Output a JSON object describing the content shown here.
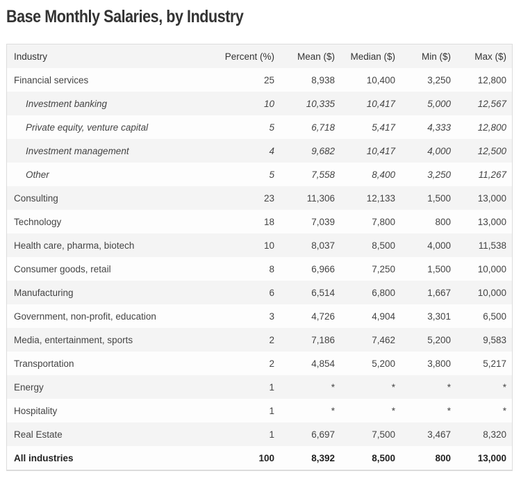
{
  "title": "Base Monthly Salaries, by Industry",
  "table": {
    "headers": [
      "Industry",
      "Percent (%)",
      "Mean ($)",
      "Median ($)",
      "Min ($)",
      "Max ($)"
    ],
    "rows": [
      {
        "industry": "Financial services",
        "sub": false,
        "percent": "25",
        "mean": "8,938",
        "median": "10,400",
        "min": "3,250",
        "max": "12,800"
      },
      {
        "industry": "Investment banking",
        "sub": true,
        "percent": "10",
        "mean": "10,335",
        "median": "10,417",
        "min": "5,000",
        "max": "12,567"
      },
      {
        "industry": "Private equity, venture capital",
        "sub": true,
        "percent": "5",
        "mean": "6,718",
        "median": "5,417",
        "min": "4,333",
        "max": "12,800"
      },
      {
        "industry": "Investment management",
        "sub": true,
        "percent": "4",
        "mean": "9,682",
        "median": "10,417",
        "min": "4,000",
        "max": "12,500"
      },
      {
        "industry": "Other",
        "sub": true,
        "percent": "5",
        "mean": "7,558",
        "median": "8,400",
        "min": "3,250",
        "max": "11,267"
      },
      {
        "industry": "Consulting",
        "sub": false,
        "percent": "23",
        "mean": "11,306",
        "median": "12,133",
        "min": "1,500",
        "max": "13,000"
      },
      {
        "industry": "Technology",
        "sub": false,
        "percent": "18",
        "mean": "7,039",
        "median": "7,800",
        "min": "800",
        "max": "13,000"
      },
      {
        "industry": "Health care, pharma, biotech",
        "sub": false,
        "percent": "10",
        "mean": "8,037",
        "median": "8,500",
        "min": "4,000",
        "max": "11,538"
      },
      {
        "industry": "Consumer goods, retail",
        "sub": false,
        "percent": "8",
        "mean": "6,966",
        "median": "7,250",
        "min": "1,500",
        "max": "10,000"
      },
      {
        "industry": "Manufacturing",
        "sub": false,
        "percent": "6",
        "mean": "6,514",
        "median": "6,800",
        "min": "1,667",
        "max": "10,000"
      },
      {
        "industry": "Government, non-profit, education",
        "sub": false,
        "percent": "3",
        "mean": "4,726",
        "median": "4,904",
        "min": "3,301",
        "max": "6,500"
      },
      {
        "industry": "Media, entertainment, sports",
        "sub": false,
        "percent": "2",
        "mean": "7,186",
        "median": "7,462",
        "min": "5,200",
        "max": "9,583"
      },
      {
        "industry": "Transportation",
        "sub": false,
        "percent": "2",
        "mean": "4,854",
        "median": "5,200",
        "min": "3,800",
        "max": "5,217"
      },
      {
        "industry": "Energy",
        "sub": false,
        "percent": "1",
        "mean": "*",
        "median": "*",
        "min": "*",
        "max": "*"
      },
      {
        "industry": "Hospitality",
        "sub": false,
        "percent": "1",
        "mean": "*",
        "median": "*",
        "min": "*",
        "max": "*"
      },
      {
        "industry": "Real Estate",
        "sub": false,
        "percent": "1",
        "mean": "6,697",
        "median": "7,500",
        "min": "3,467",
        "max": "8,320"
      }
    ],
    "total": {
      "industry": "All industries",
      "percent": "100",
      "mean": "8,392",
      "median": "8,500",
      "min": "800",
      "max": "13,000"
    }
  }
}
